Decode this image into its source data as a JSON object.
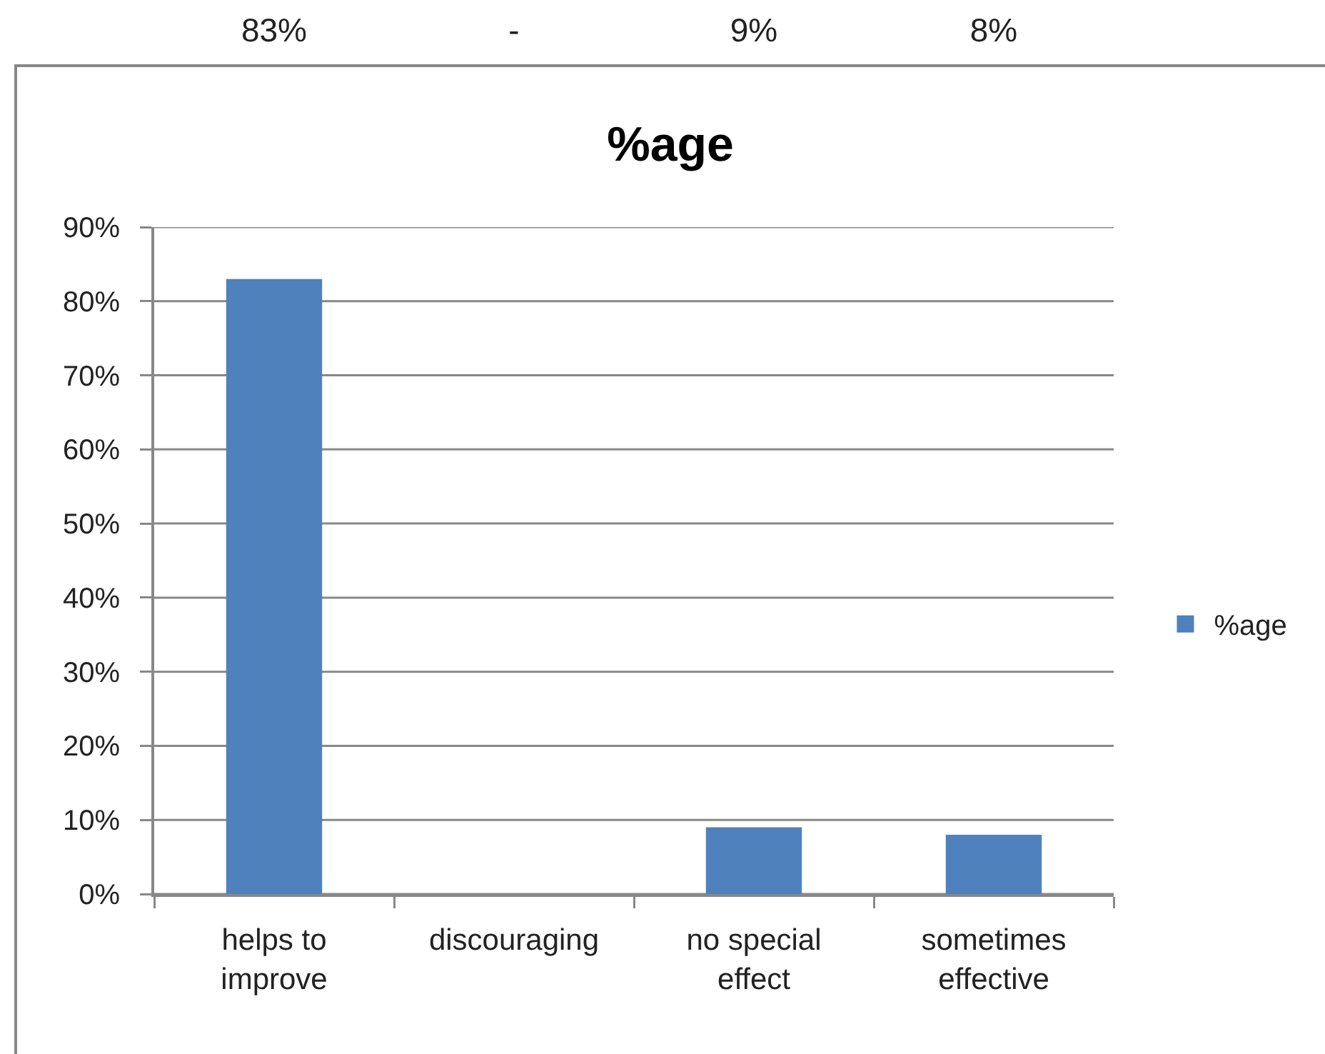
{
  "chart_data": {
    "type": "bar",
    "title": "%age",
    "categories": [
      "helps to improve",
      "discouraging",
      "no special effect",
      "sometimes effective"
    ],
    "series": [
      {
        "name": "%age",
        "color": "#4f81bd",
        "values": [
          83,
          0,
          9,
          8
        ],
        "value_labels": [
          "83%",
          "-",
          "9%",
          "8%"
        ]
      }
    ],
    "ylim": [
      0,
      90
    ],
    "yticks": [
      {
        "value": 0,
        "label": "0%"
      },
      {
        "value": 10,
        "label": "10%"
      },
      {
        "value": 20,
        "label": "20%"
      },
      {
        "value": 30,
        "label": "30%"
      },
      {
        "value": 40,
        "label": "40%"
      },
      {
        "value": 50,
        "label": "50%"
      },
      {
        "value": 60,
        "label": "60%"
      },
      {
        "value": 70,
        "label": "70%"
      },
      {
        "value": 80,
        "label": "80%"
      },
      {
        "value": 90,
        "label": "90%"
      }
    ],
    "grid": "y",
    "legend": "right"
  }
}
